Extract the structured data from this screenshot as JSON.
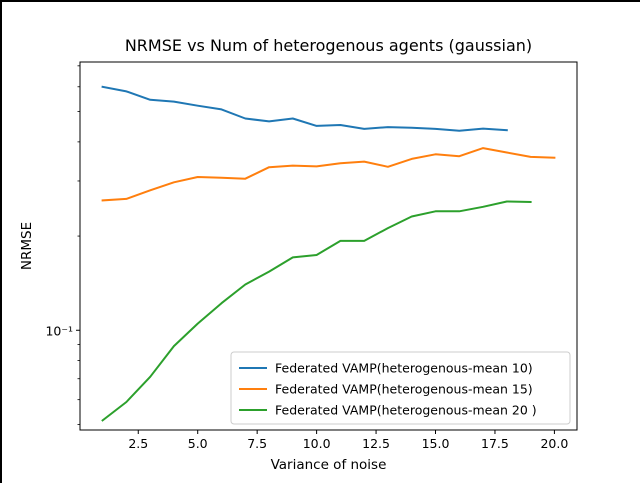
{
  "chart_data": {
    "type": "line",
    "title": "NRMSE vs Num of heterogenous agents (gaussian)",
    "xlabel": "Variance of noise",
    "ylabel": "NRMSE",
    "xscale": "linear",
    "yscale": "log",
    "xlim": [
      0.05,
      20.95
    ],
    "ylim": [
      0.048,
      0.72
    ],
    "xticks": [
      2.5,
      5.0,
      7.5,
      10.0,
      12.5,
      15.0,
      17.5,
      20.0
    ],
    "xtick_labels": [
      "2.5",
      "5.0",
      "7.5",
      "10.0",
      "12.5",
      "15.0",
      "17.5",
      "20.0"
    ],
    "yticks_major": [
      0.1
    ],
    "ytick_labels": [
      "10⁻¹"
    ],
    "yticks_minor": [
      0.05,
      0.06,
      0.07,
      0.08,
      0.09,
      0.2,
      0.3,
      0.4,
      0.5,
      0.6,
      0.7
    ],
    "grid": false,
    "legend_position": "lower-right",
    "series": [
      {
        "name": "Federated VAMP(heterogenous-mean 10)",
        "color": "#1f77b4",
        "x": [
          1,
          2,
          3,
          4,
          5,
          6,
          7,
          8,
          9,
          10,
          11,
          12,
          13,
          14,
          15,
          16,
          17,
          18
        ],
        "y": [
          0.6,
          0.58,
          0.545,
          0.538,
          0.522,
          0.508,
          0.475,
          0.465,
          0.475,
          0.45,
          0.453,
          0.44,
          0.446,
          0.444,
          0.44,
          0.434,
          0.441,
          0.436
        ]
      },
      {
        "name": "Federated VAMP(heterogenous-mean 15)",
        "color": "#ff7f0e",
        "x": [
          1,
          2,
          3,
          4,
          5,
          6,
          7,
          8,
          9,
          10,
          11,
          12,
          13,
          14,
          15,
          16,
          17,
          18,
          19,
          20
        ],
        "y": [
          0.26,
          0.263,
          0.28,
          0.297,
          0.309,
          0.307,
          0.305,
          0.332,
          0.336,
          0.334,
          0.342,
          0.346,
          0.333,
          0.353,
          0.365,
          0.36,
          0.382,
          0.37,
          0.358,
          0.356
        ]
      },
      {
        "name": "Federated VAMP(heterogenous-mean 20 )",
        "color": "#2ca02c",
        "x": [
          1,
          2,
          3,
          4,
          5,
          6,
          7,
          8,
          9,
          10,
          11,
          12,
          13,
          14,
          15,
          16,
          17,
          18,
          19
        ],
        "y": [
          0.0515,
          0.059,
          0.071,
          0.089,
          0.105,
          0.122,
          0.14,
          0.154,
          0.171,
          0.174,
          0.193,
          0.193,
          0.212,
          0.231,
          0.24,
          0.24,
          0.248,
          0.258,
          0.257
        ]
      }
    ]
  }
}
